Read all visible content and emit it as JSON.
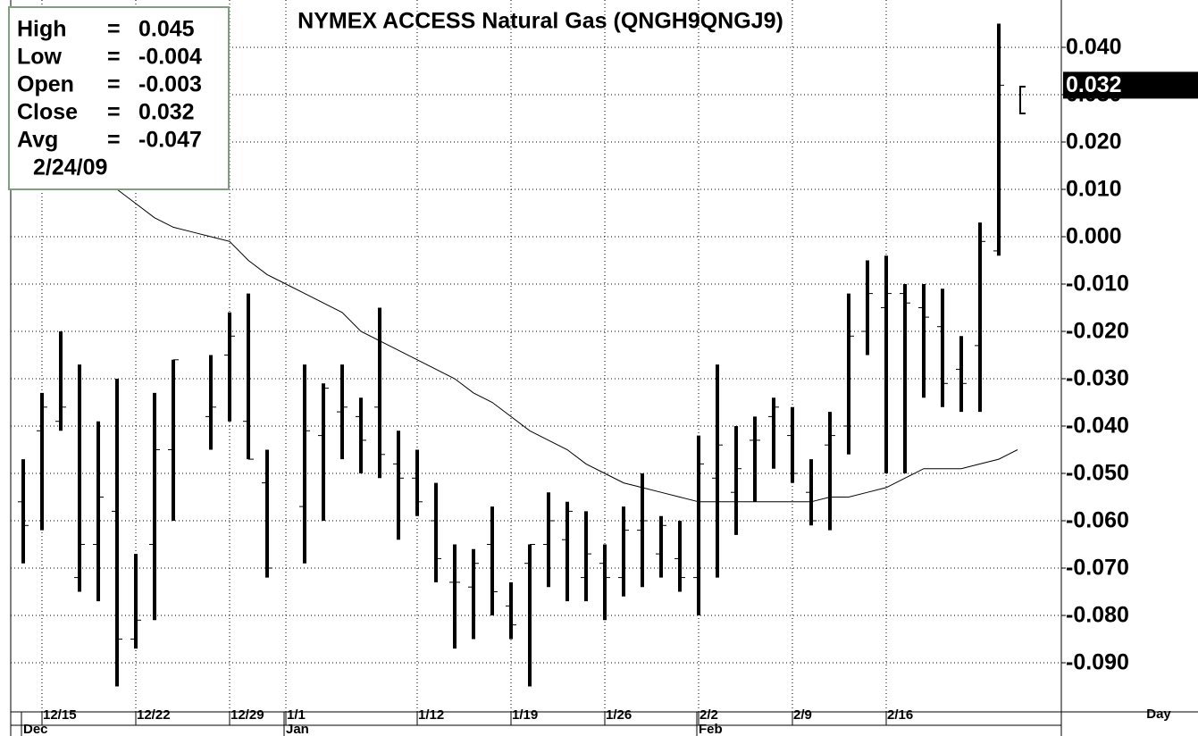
{
  "chart_data": {
    "type": "ohlc",
    "title": "NYMEX ACCESS Natural Gas (QNGH9QNGJ9)",
    "x_axis_label": "Day",
    "categories": [
      null,
      "12/15",
      null,
      null,
      null,
      null,
      "12/22",
      null,
      null,
      null,
      null,
      "12/29",
      null,
      null,
      "1/1",
      null,
      null,
      null,
      null,
      null,
      null,
      "1/12",
      null,
      null,
      null,
      null,
      "1/19",
      null,
      null,
      null,
      null,
      "1/26",
      null,
      null,
      null,
      null,
      "2/2",
      null,
      null,
      null,
      null,
      "2/9",
      null,
      null,
      null,
      null,
      "2/16",
      null,
      null,
      null,
      null,
      null,
      null,
      null
    ],
    "months": [
      "Dec",
      null,
      null,
      null,
      null,
      null,
      null,
      null,
      null,
      null,
      null,
      null,
      null,
      null,
      "Jan",
      null,
      null,
      null,
      null,
      null,
      null,
      null,
      null,
      null,
      null,
      null,
      null,
      null,
      null,
      null,
      null,
      null,
      null,
      null,
      null,
      null,
      "Feb",
      null,
      null,
      null,
      null,
      null,
      null,
      null,
      null,
      null,
      null,
      null,
      null,
      null,
      null,
      null,
      null,
      null
    ],
    "high": [
      -0.047,
      -0.033,
      -0.02,
      -0.027,
      -0.039,
      -0.03,
      -0.067,
      -0.033,
      -0.026,
      null,
      -0.025,
      -0.016,
      -0.012,
      -0.045,
      null,
      -0.027,
      -0.031,
      -0.027,
      -0.034,
      -0.015,
      -0.041,
      -0.045,
      -0.052,
      -0.065,
      -0.066,
      -0.057,
      -0.073,
      -0.065,
      -0.054,
      -0.056,
      -0.058,
      -0.065,
      -0.057,
      -0.05,
      -0.059,
      -0.06,
      -0.042,
      -0.027,
      -0.04,
      -0.038,
      -0.034,
      -0.036,
      -0.047,
      -0.037,
      -0.012,
      -0.005,
      -0.004,
      -0.01,
      -0.01,
      -0.011,
      -0.021,
      0.003,
      0.045,
      null
    ],
    "low": [
      -0.069,
      -0.062,
      -0.041,
      -0.075,
      -0.077,
      -0.095,
      -0.087,
      -0.081,
      -0.06,
      null,
      -0.045,
      -0.039,
      -0.047,
      -0.072,
      null,
      -0.069,
      -0.06,
      -0.047,
      -0.05,
      -0.051,
      -0.064,
      -0.059,
      -0.073,
      -0.087,
      -0.085,
      -0.08,
      -0.085,
      -0.095,
      -0.074,
      -0.077,
      -0.077,
      -0.081,
      -0.076,
      -0.074,
      -0.072,
      -0.075,
      -0.08,
      -0.072,
      -0.063,
      -0.056,
      -0.049,
      -0.052,
      -0.061,
      -0.062,
      -0.046,
      -0.025,
      -0.05,
      -0.05,
      -0.034,
      -0.036,
      -0.037,
      -0.037,
      -0.004,
      null
    ],
    "open": [
      -0.056,
      -0.041,
      -0.039,
      -0.072,
      -0.065,
      -0.058,
      -0.085,
      -0.065,
      -0.045,
      null,
      -0.038,
      -0.025,
      -0.039,
      -0.052,
      null,
      -0.057,
      -0.042,
      -0.037,
      -0.038,
      -0.036,
      -0.048,
      -0.051,
      -0.06,
      -0.073,
      -0.074,
      -0.065,
      -0.078,
      -0.069,
      -0.065,
      -0.064,
      -0.072,
      -0.069,
      -0.072,
      -0.062,
      -0.067,
      -0.068,
      -0.072,
      -0.051,
      -0.054,
      -0.043,
      -0.038,
      -0.042,
      -0.054,
      -0.044,
      -0.04,
      -0.02,
      -0.015,
      -0.012,
      -0.015,
      -0.019,
      -0.028,
      -0.023,
      -0.003,
      null
    ],
    "close": [
      -0.061,
      -0.036,
      -0.036,
      -0.065,
      -0.055,
      -0.085,
      -0.081,
      -0.045,
      -0.026,
      null,
      -0.036,
      -0.021,
      -0.047,
      -0.07,
      null,
      -0.041,
      -0.032,
      -0.036,
      -0.043,
      -0.046,
      -0.051,
      -0.056,
      -0.068,
      -0.073,
      -0.069,
      -0.075,
      -0.082,
      -0.065,
      -0.06,
      -0.058,
      -0.067,
      -0.072,
      -0.062,
      -0.06,
      -0.061,
      -0.072,
      -0.048,
      -0.044,
      -0.049,
      -0.043,
      -0.036,
      -0.05,
      -0.06,
      -0.042,
      -0.021,
      -0.012,
      -0.012,
      -0.014,
      -0.017,
      -0.031,
      -0.031,
      -0.001,
      0.032,
      null
    ],
    "avg": [
      null,
      null,
      null,
      null,
      null,
      0.01,
      0.007,
      0.004,
      0.002,
      0.001,
      0.0,
      -0.001,
      -0.005,
      -0.008,
      -0.01,
      -0.012,
      -0.014,
      -0.016,
      -0.02,
      -0.022,
      -0.024,
      -0.026,
      -0.028,
      -0.03,
      -0.033,
      -0.035,
      -0.038,
      -0.041,
      -0.043,
      -0.045,
      -0.048,
      -0.05,
      -0.052,
      -0.053,
      -0.054,
      -0.055,
      -0.056,
      -0.056,
      -0.056,
      -0.056,
      -0.056,
      -0.056,
      -0.056,
      -0.055,
      -0.055,
      -0.054,
      -0.053,
      -0.051,
      -0.049,
      -0.049,
      -0.049,
      -0.048,
      -0.047,
      -0.045
    ],
    "ylim": [
      -0.1,
      0.05
    ],
    "yticks": [
      {
        "value": 0.04,
        "label": "0.040"
      },
      {
        "value": 0.03,
        "label": "0.030"
      },
      {
        "value": 0.02,
        "label": "0.020"
      },
      {
        "value": 0.01,
        "label": "0.010"
      },
      {
        "value": 0,
        "label": "0.000"
      },
      {
        "value": -0.01,
        "label": "-0.010"
      },
      {
        "value": -0.02,
        "label": "-0.020"
      },
      {
        "value": -0.03,
        "label": "-0.030"
      },
      {
        "value": -0.04,
        "label": "-0.040"
      },
      {
        "value": -0.05,
        "label": "-0.050"
      },
      {
        "value": -0.06,
        "label": "-0.060"
      },
      {
        "value": -0.07,
        "label": "-0.070"
      },
      {
        "value": -0.08,
        "label": "-0.080"
      },
      {
        "value": -0.09,
        "label": "-0.090"
      }
    ],
    "grid": true,
    "color": "#000000",
    "last_price": {
      "value": 0.032,
      "label": "0.032"
    },
    "info_box": {
      "separator": "=",
      "rows": [
        {
          "label": "High",
          "value": "0.045"
        },
        {
          "label": "Low",
          "value": "-0.004"
        },
        {
          "label": "Open",
          "value": "-0.003"
        },
        {
          "label": "Close",
          "value": "0.032"
        },
        {
          "label": "Avg",
          "value": "-0.047"
        }
      ],
      "date": "2/24/09"
    }
  }
}
